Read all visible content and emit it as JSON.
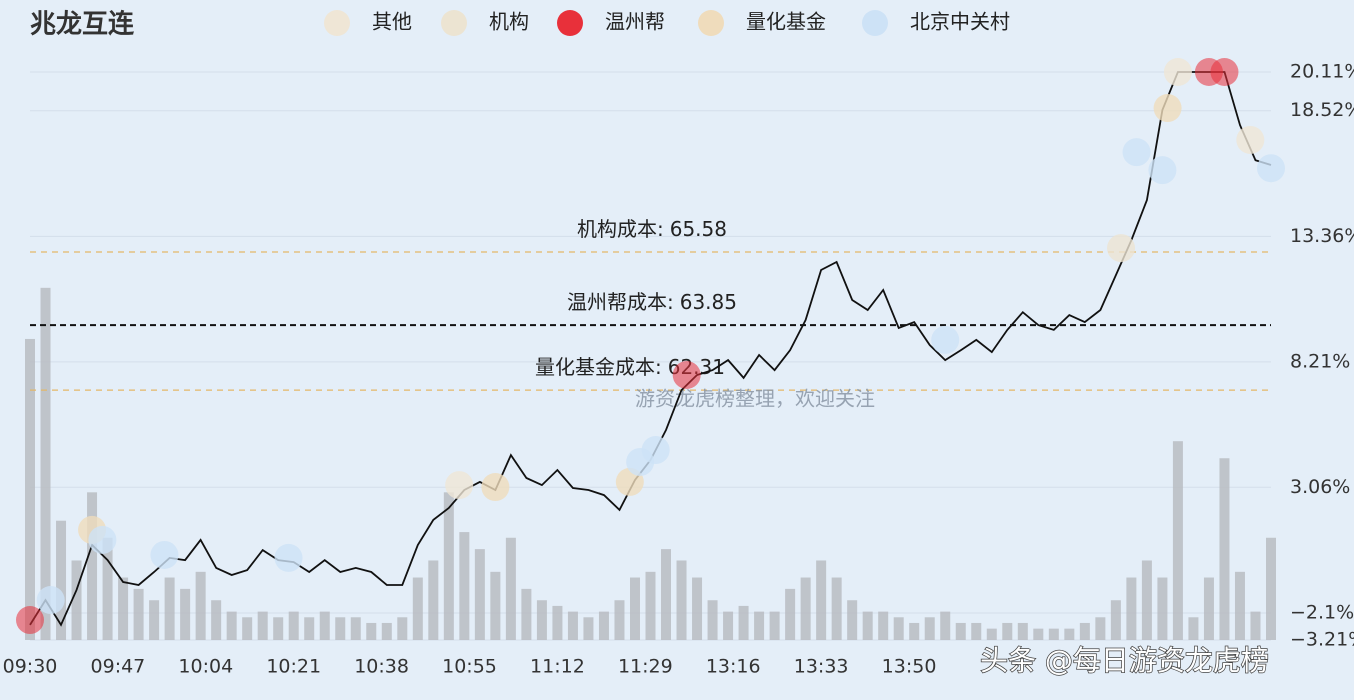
{
  "chart_data": {
    "type": "line",
    "title": "兆龙互连",
    "xlim": [
      0,
      240
    ],
    "xticks": [
      {
        "value": 0,
        "label": "09:30"
      },
      {
        "value": 17,
        "label": "09:47"
      },
      {
        "value": 34,
        "label": "10:04"
      },
      {
        "value": 51,
        "label": "10:21"
      },
      {
        "value": 68,
        "label": "10:38"
      },
      {
        "value": 85,
        "label": "10:55"
      },
      {
        "value": 102,
        "label": "11:12"
      },
      {
        "value": 119,
        "label": "11:29"
      },
      {
        "value": 136,
        "label": "13:16"
      },
      {
        "value": 153,
        "label": "13:33"
      },
      {
        "value": 170,
        "label": "13:50"
      }
    ],
    "ylim": [
      -3.21,
      20.11
    ],
    "yticks": [
      {
        "value": 20.11,
        "label": "20.11%"
      },
      {
        "value": 18.52,
        "label": "18.52%"
      },
      {
        "value": 13.36,
        "label": "13.36%"
      },
      {
        "value": 8.21,
        "label": "8.21%"
      },
      {
        "value": 3.06,
        "label": "3.06%"
      },
      {
        "value": -2.1,
        "label": "−2.1%"
      },
      {
        "value": -3.21,
        "label": "−3.21%"
      }
    ],
    "y2lim": [
      0,
      100
    ],
    "grid": true,
    "x": [
      0,
      3,
      6,
      9,
      12,
      15,
      18,
      21,
      24,
      27,
      30,
      33,
      36,
      39,
      42,
      45,
      48,
      51,
      54,
      57,
      60,
      63,
      66,
      69,
      72,
      75,
      78,
      81,
      84,
      87,
      90,
      93,
      96,
      99,
      102,
      105,
      108,
      111,
      114,
      117,
      120,
      123,
      126,
      129,
      132,
      135,
      138,
      141,
      144,
      147,
      150,
      153,
      156,
      159,
      162,
      165,
      168,
      171,
      174,
      177,
      180,
      183,
      186,
      189,
      192,
      195,
      198,
      201,
      204,
      207,
      210,
      213,
      216,
      219,
      222,
      225,
      228,
      231,
      234,
      237,
      240
    ],
    "price": {
      "color": "#111111",
      "values": [
        -2.59,
        -1.57,
        -2.59,
        -1.16,
        0.69,
        0.07,
        -0.83,
        -0.95,
        -0.42,
        0.16,
        0.07,
        0.9,
        -0.25,
        -0.54,
        -0.34,
        0.48,
        0.07,
        -0.01,
        -0.42,
        0.07,
        -0.42,
        -0.25,
        -0.42,
        -0.95,
        -0.95,
        0.69,
        1.72,
        2.21,
        2.95,
        3.28,
        2.95,
        4.38,
        3.44,
        3.15,
        3.77,
        3.03,
        2.95,
        2.74,
        2.13,
        3.36,
        4.18,
        5.41,
        7.05,
        7.67,
        7.87,
        8.28,
        7.55,
        8.49,
        7.87,
        8.69,
        9.93,
        11.98,
        12.31,
        10.75,
        10.34,
        11.16,
        9.6,
        9.84,
        8.9,
        8.28,
        8.69,
        9.11,
        8.61,
        9.52,
        10.25,
        9.72,
        9.52,
        10.13,
        9.84,
        10.34,
        11.77,
        13.21,
        14.85,
        18.55,
        20.11,
        20.11,
        20.11,
        20.11,
        17.93,
        16.49,
        16.29
      ]
    },
    "volume": {
      "axis": "y2",
      "color": "#b9bcc2",
      "values": [
        53,
        62,
        21,
        14,
        26,
        18,
        11,
        9,
        7,
        11,
        9,
        12,
        7,
        5,
        4,
        5,
        4,
        5,
        4,
        5,
        4,
        4,
        3,
        3,
        4,
        11,
        14,
        26,
        19,
        16,
        12,
        18,
        9,
        7,
        6,
        5,
        4,
        5,
        7,
        11,
        12,
        16,
        14,
        11,
        7,
        5,
        6,
        5,
        5,
        9,
        11,
        14,
        11,
        7,
        5,
        5,
        4,
        3,
        4,
        5,
        3,
        3,
        2,
        3,
        3,
        2,
        2,
        2,
        3,
        4,
        7,
        11,
        14,
        11,
        35,
        4,
        11,
        32,
        12,
        5,
        18
      ]
    },
    "groups": [
      {
        "name": "其他",
        "color": "#efe6d6",
        "points": [
          {
            "x": 83,
            "y": 3.15
          },
          {
            "x": 236,
            "y": 17.32
          },
          {
            "x": 222,
            "y": 20.11
          }
        ]
      },
      {
        "name": "机构",
        "color": "#ece4d2",
        "points": [
          {
            "x": 211,
            "y": 12.88
          }
        ]
      },
      {
        "name": "温州帮",
        "color": "#e8303a",
        "points": [
          {
            "x": 0,
            "y": -2.39
          },
          {
            "x": 228,
            "y": 20.11
          },
          {
            "x": 231,
            "y": 20.11
          },
          {
            "x": 127,
            "y": 7.67
          }
        ]
      },
      {
        "name": "量化基金",
        "color": "#efdcbc",
        "points": [
          {
            "x": 90,
            "y": 3.07
          },
          {
            "x": 220,
            "y": 18.63
          },
          {
            "x": 116,
            "y": 3.28
          },
          {
            "x": 12,
            "y": 1.31
          }
        ]
      },
      {
        "name": "北京中关村",
        "color": "#cde2f6",
        "points": [
          {
            "x": 214,
            "y": 16.82
          },
          {
            "x": 219,
            "y": 16.08
          },
          {
            "x": 240,
            "y": 16.16
          },
          {
            "x": 177,
            "y": 9.11
          },
          {
            "x": 118,
            "y": 4.1
          },
          {
            "x": 121,
            "y": 4.59
          },
          {
            "x": 50,
            "y": 0.16
          },
          {
            "x": 26,
            "y": 0.28
          },
          {
            "x": 14,
            "y": 0.9
          },
          {
            "x": 4,
            "y": -1.57
          }
        ]
      }
    ],
    "cost_lines": [
      {
        "label": "机构成本:",
        "price": 65.58,
        "level": 12.72,
        "color": "#e3b767",
        "dash": "6,5"
      },
      {
        "label": "温州帮成本:",
        "price": 63.85,
        "level": 9.72,
        "color": "#111111",
        "dash": "6,4"
      },
      {
        "label": "量化基金成本:",
        "price": 62.31,
        "level": 7.05,
        "color": "#e3b767",
        "dash": "6,5"
      }
    ],
    "watermark": "游资龙虎榜整理，欢迎关注",
    "overlay_text": "头条 @每日游资龙虎榜"
  }
}
